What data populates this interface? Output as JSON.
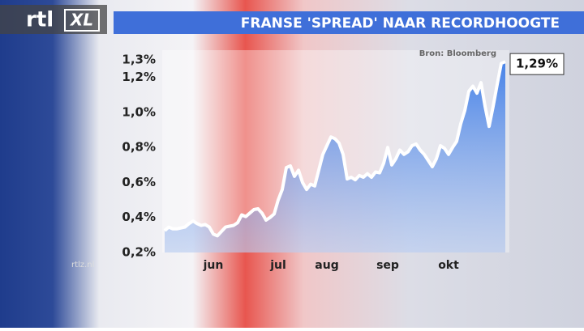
{
  "brand": {
    "logo": "rtl",
    "logo_suffix": "XL",
    "website": "rtlz.nl"
  },
  "chart_data": {
    "type": "area",
    "title": "FRANSE 'SPREAD' NAAR RECORDHOOGTE",
    "source": "Bron: Bloomberg",
    "categories": [
      null,
      null,
      null,
      null,
      null,
      null,
      null,
      null,
      null,
      null,
      null,
      null,
      "jun",
      null,
      null,
      null,
      null,
      null,
      null,
      null,
      null,
      null,
      null,
      null,
      null,
      null,
      null,
      null,
      "jul",
      null,
      null,
      null,
      null,
      null,
      null,
      null,
      null,
      null,
      null,
      null,
      "aug",
      null,
      null,
      null,
      null,
      null,
      null,
      null,
      null,
      null,
      null,
      null,
      null,
      null,
      null,
      "sep",
      null,
      null,
      null,
      null,
      null,
      null,
      null,
      null,
      null,
      null,
      null,
      null,
      null,
      null,
      "okt",
      null,
      null,
      null,
      null,
      null,
      null,
      null,
      null,
      null,
      null,
      null,
      null,
      null,
      null
    ],
    "values": [
      0.325,
      0.345,
      0.335,
      0.335,
      0.34,
      0.345,
      0.365,
      0.38,
      0.365,
      0.355,
      0.36,
      0.345,
      0.305,
      0.295,
      0.32,
      0.345,
      0.35,
      0.355,
      0.37,
      0.415,
      0.405,
      0.425,
      0.445,
      0.45,
      0.425,
      0.385,
      0.4,
      0.42,
      0.5,
      0.56,
      0.685,
      0.695,
      0.635,
      0.67,
      0.6,
      0.56,
      0.59,
      0.58,
      0.67,
      0.76,
      0.81,
      0.86,
      0.85,
      0.825,
      0.76,
      0.62,
      0.63,
      0.615,
      0.64,
      0.63,
      0.65,
      0.63,
      0.66,
      0.655,
      0.71,
      0.8,
      0.7,
      0.735,
      0.785,
      0.76,
      0.775,
      0.81,
      0.82,
      0.785,
      0.76,
      0.725,
      0.69,
      0.735,
      0.81,
      0.795,
      0.76,
      0.8,
      0.835,
      0.935,
      1.01,
      1.12,
      1.15,
      1.11,
      1.17,
      1.035,
      0.92,
      1.035,
      1.16,
      1.28,
      1.29
    ],
    "value_labels": [
      null,
      null,
      null,
      null,
      null,
      null,
      null,
      null,
      null,
      null,
      null,
      null,
      null,
      null,
      null,
      null,
      null,
      null,
      null,
      null,
      null,
      null,
      null,
      null,
      null,
      null,
      null,
      null,
      null,
      null,
      null,
      null,
      null,
      null,
      null,
      null,
      null,
      null,
      null,
      null,
      null,
      null,
      null,
      null,
      null,
      null,
      null,
      null,
      null,
      null,
      null,
      null,
      null,
      null,
      null,
      null,
      null,
      null,
      null,
      null,
      null,
      null,
      null,
      null,
      null,
      null,
      null,
      null,
      null,
      null,
      null,
      null,
      null,
      null,
      null,
      null,
      null,
      null,
      null,
      null,
      null,
      null,
      null,
      null,
      "1,29%"
    ],
    "color": "#ffffff",
    "ylim": [
      0.2,
      1.3
    ],
    "yticks": [
      {
        "value": 0.2,
        "label": "0,2%"
      },
      {
        "value": 0.4,
        "label": "0,4%"
      },
      {
        "value": 0.6,
        "label": "0,6%"
      },
      {
        "value": 0.8,
        "label": "0,8%"
      },
      {
        "value": 1.0,
        "label": "1,0%"
      },
      {
        "value": 1.2,
        "label": "1,2%"
      },
      {
        "value": 1.3,
        "label": "1,3%"
      }
    ],
    "grid": false
  }
}
